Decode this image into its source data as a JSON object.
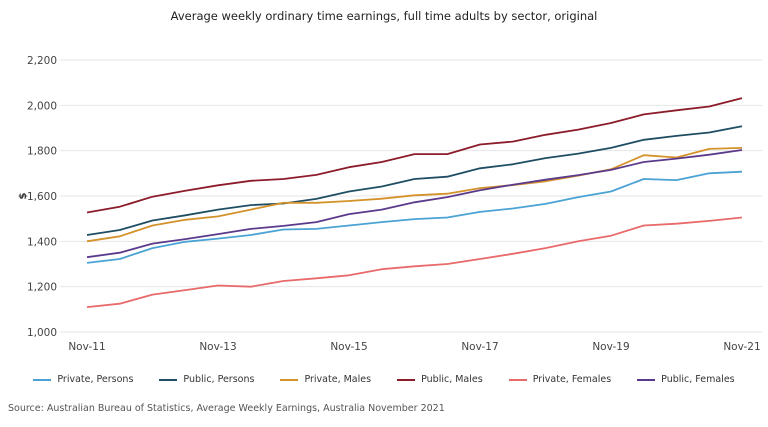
{
  "chart_data": {
    "type": "line",
    "title": "Average weekly ordinary time earnings, full time adults by sector, original",
    "ylabel": "$",
    "xlabel": "",
    "ylim": [
      1000,
      2200
    ],
    "yticks": [
      "1,000",
      "1,200",
      "1,400",
      "1,600",
      "1,800",
      "2,000",
      "2,200"
    ],
    "ytick_values": [
      1000,
      1200,
      1400,
      1600,
      1800,
      2000,
      2200
    ],
    "xtick_labels": [
      "Nov-11",
      "Nov-13",
      "Nov-15",
      "Nov-17",
      "Nov-19",
      "Nov-21"
    ],
    "grid": true,
    "legend_position": "bottom",
    "categories": [
      "Nov-11",
      "May-12",
      "Nov-12",
      "May-13",
      "Nov-13",
      "May-14",
      "Nov-14",
      "May-15",
      "Nov-15",
      "May-16",
      "Nov-16",
      "May-17",
      "Nov-17",
      "May-18",
      "Nov-18",
      "May-19",
      "Nov-19",
      "May-20",
      "Nov-20",
      "May-21",
      "Nov-21"
    ],
    "series": [
      {
        "name": "Private, Persons",
        "color": "#4aa3d4",
        "values": [
          1305,
          1322,
          1370,
          1398,
          1412,
          1428,
          1452,
          1455,
          1470,
          1485,
          1498,
          1505,
          1530,
          1545,
          1565,
          1595,
          1620,
          1675,
          1670,
          1700,
          1707
        ]
      },
      {
        "name": "Public, Persons",
        "color": "#1f4e63",
        "values": [
          1428,
          1450,
          1492,
          1515,
          1540,
          1560,
          1567,
          1587,
          1620,
          1642,
          1675,
          1685,
          1722,
          1740,
          1767,
          1787,
          1812,
          1848,
          1865,
          1880,
          1908
        ]
      },
      {
        "name": "Private, Males",
        "color": "#d4922a",
        "values": [
          1400,
          1422,
          1470,
          1495,
          1510,
          1540,
          1570,
          1570,
          1578,
          1588,
          1603,
          1610,
          1635,
          1648,
          1665,
          1690,
          1718,
          1780,
          1770,
          1808,
          1812
        ]
      },
      {
        "name": "Public, Males",
        "color": "#8c1c2a",
        "values": [
          1527,
          1553,
          1597,
          1623,
          1647,
          1667,
          1675,
          1693,
          1727,
          1750,
          1785,
          1785,
          1827,
          1840,
          1870,
          1893,
          1922,
          1960,
          1978,
          1995,
          2032
        ]
      },
      {
        "name": "Private, Females",
        "color": "#e86a6a",
        "values": [
          1110,
          1125,
          1165,
          1185,
          1205,
          1200,
          1225,
          1237,
          1250,
          1277,
          1290,
          1300,
          1322,
          1345,
          1370,
          1400,
          1425,
          1470,
          1478,
          1490,
          1505
        ]
      },
      {
        "name": "Public, Females",
        "color": "#5b3a8c",
        "values": [
          1330,
          1350,
          1390,
          1410,
          1432,
          1455,
          1468,
          1485,
          1520,
          1540,
          1572,
          1595,
          1625,
          1650,
          1672,
          1692,
          1715,
          1750,
          1765,
          1782,
          1803
        ]
      }
    ]
  },
  "source": "Source: Australian Bureau of Statistics, Average Weekly Earnings, Australia November 2021"
}
